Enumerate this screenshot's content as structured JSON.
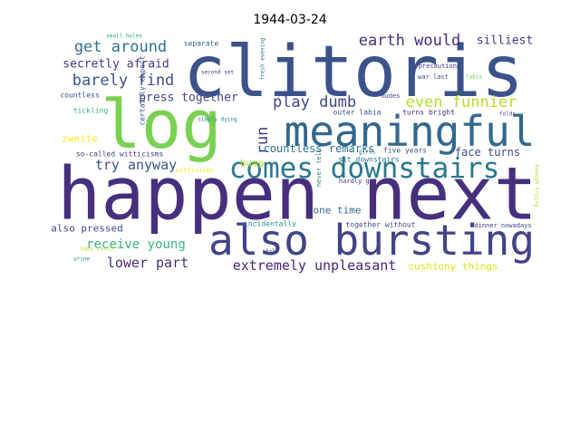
{
  "chart_data": {
    "type": "wordcloud",
    "title": "1944-03-24",
    "words": [
      "happen next",
      "clitoris",
      "log",
      "also bursting",
      "meaningful",
      "comes downstairs",
      "earth would",
      "get around",
      "barely find",
      "secretly afraid",
      "press together",
      "play dumb",
      "even funnier",
      "silliest",
      "run",
      "try anyway",
      "countless remarks",
      "face turns",
      "zweite",
      "bump",
      "one time",
      "also pressed",
      "receive young",
      "lower part",
      "extremely unpleasant",
      "cushiony things",
      "together without",
      "so-called witticisms",
      "incidentally",
      "dinner nowadays",
      "five years",
      "sit downstairs",
      "outer labia",
      "turns bright",
      "nudes",
      "war last",
      "precautions",
      "labia",
      "countless",
      "tickling",
      "separate",
      "second set",
      "fresh evening",
      "simply dying",
      "witticisms",
      "hardly get",
      "girls",
      "small holes",
      "fold",
      "baby could",
      "urine",
      "folds",
      "certainly expect",
      "never tell",
      "enough trying"
    ],
    "weights": [
      80,
      78,
      74,
      46,
      46,
      31,
      17,
      17,
      17,
      13,
      13,
      17,
      17,
      13,
      17,
      15,
      12,
      12,
      11,
      11,
      11,
      11,
      14,
      15,
      15,
      11,
      8,
      8,
      8,
      7,
      8,
      8,
      8,
      8,
      7,
      7,
      7,
      6,
      8,
      8,
      8,
      6,
      6,
      6,
      7,
      7,
      6,
      6,
      6,
      6,
      6,
      6,
      8,
      7,
      6
    ],
    "colors": [
      "#46307e",
      "#3b528b",
      "#7ad151",
      "#414487",
      "#31688e",
      "#2a788e",
      "#472d7b",
      "#2c728e",
      "#3b528b",
      "#443983",
      "#404688",
      "#3e4989",
      "#b5de2b",
      "#453781",
      "#414487",
      "#3b528b",
      "#2c728e",
      "#3e4989",
      "#fde725",
      "#b5de2b",
      "#31688e",
      "#3e4989",
      "#35b779",
      "#472c7a",
      "#482475",
      "#dde318",
      "#3e4989",
      "#453781",
      "#21918c",
      "#414487",
      "#39568c",
      "#2c728e",
      "#3b528b",
      "#472d7b",
      "#414487",
      "#3e4989",
      "#453781",
      "#6ece58",
      "#3b528b",
      "#35b779",
      "#31688e",
      "#3e4989",
      "#2a788e",
      "#21918c",
      "#fde725",
      "#443983",
      "#2c728e",
      "#22a884",
      "#414487",
      "#b5de2b",
      "#26828e",
      "#404688",
      "#3b528b",
      "#2a788e",
      "#b5de2b"
    ]
  }
}
